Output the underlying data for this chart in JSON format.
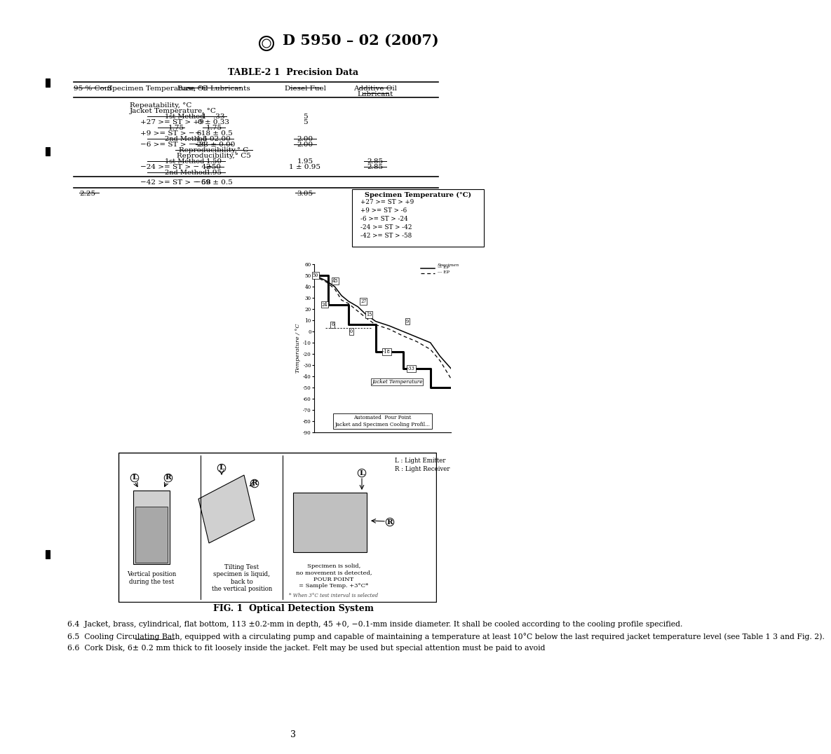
{
  "page_title": "D 5950 – 02 (2007)",
  "page_number": "3",
  "table_title": "TABLE-2 1  Precision Data",
  "fig_caption": "FIG. 1  Optical Detection System",
  "body_text_1": "    6.4  Jacket, brass, cylindrical, flat bottom, 113 ±0.2-mm in depth, 45 +0, −0.1-mm inside diameter. It shall be cooled according to the cooling profile specified.",
  "body_text_2": "    6.5  Cooling Circulating Bath, equipped with a circulating pump and capable of maintaining a temperature at least 10°C below the last required jacket temperature level (see Table 1 3 and Fig. 2).",
  "body_text_3": "    6.6  Cork Disk, 6± 0.2 mm thick to fit loosely inside the jacket. Felt may be used but special attention must be paid to avoid",
  "bg_color": "#ffffff",
  "text_color": "#000000"
}
